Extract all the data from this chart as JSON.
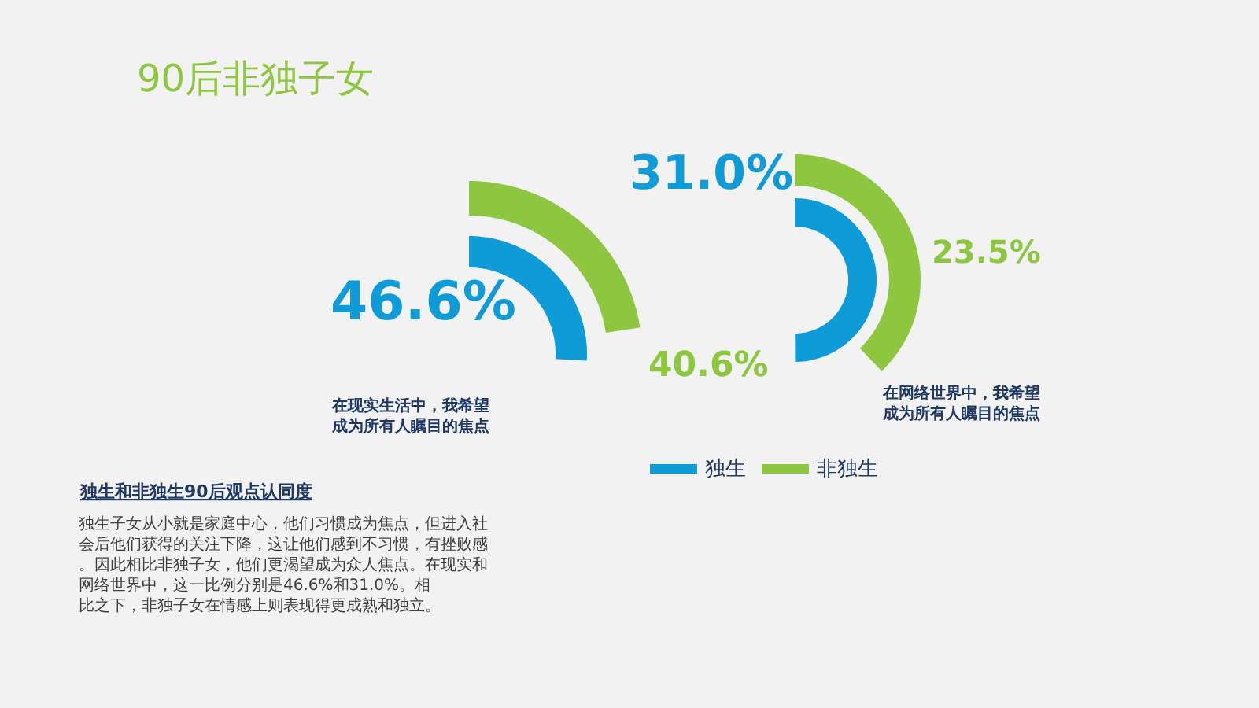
{
  "chart_data": [
    {
      "type": "other",
      "title": "90后非独子女",
      "categories": [
        "在现实生活中，我希望成为所有人瞩目的焦点"
      ],
      "legend": "bottom",
      "series": [
        {
          "name": "独生",
          "color": "#0f9bd7",
          "values": [
            46.6
          ],
          "value_labels": [
            "46.6%"
          ]
        },
        {
          "name": "非独生",
          "color": "#8dc63f",
          "values": [
            40.6
          ],
          "value_labels": [
            "40.6%"
          ]
        }
      ],
      "annotations": [
        "独生和非独生90后观点认同度",
        "独生子女从小就是家庭中心，他们习惯成为焦点，但进入社会后他们获得的关注下降，这让他们感到不习惯，有挫败感。因此相比非独子女，他们更渴望成为众人焦点。在现实和网络世界中，这一比例分别是46.6%和31.0%。相比之下，非独子女在情感上则表现得更成熟和独立。"
      ]
    },
    {
      "type": "other",
      "categories": [
        "在网络世界中，我希望成为所有人瞩目的焦点"
      ],
      "series": [
        {
          "color": "#0f9bd7",
          "values": [
            31.0
          ],
          "value_labels": [
            "31.0%"
          ]
        },
        {
          "color": "#8dc63f",
          "values": [
            23.5
          ],
          "value_labels": [
            "23.5%"
          ]
        }
      ]
    }
  ]
}
